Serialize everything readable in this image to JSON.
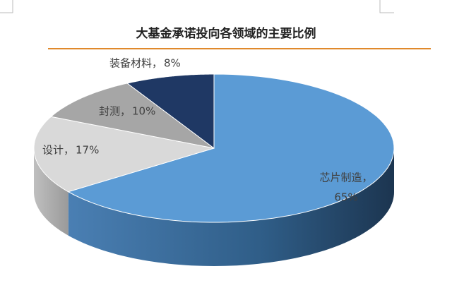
{
  "chart_data": {
    "type": "pie3d",
    "title": "大基金承诺投向各领域的主要比例",
    "categories": [
      "芯片制造，",
      "设计，",
      "封测，",
      "装备材料，"
    ],
    "values": [
      65,
      17,
      10,
      8
    ],
    "value_labels": [
      "65%",
      "17%",
      "10%",
      "8%"
    ],
    "colors": [
      "#5b9bd5",
      "#d9d9d9",
      "#a6a6a6",
      "#1f3864"
    ]
  }
}
